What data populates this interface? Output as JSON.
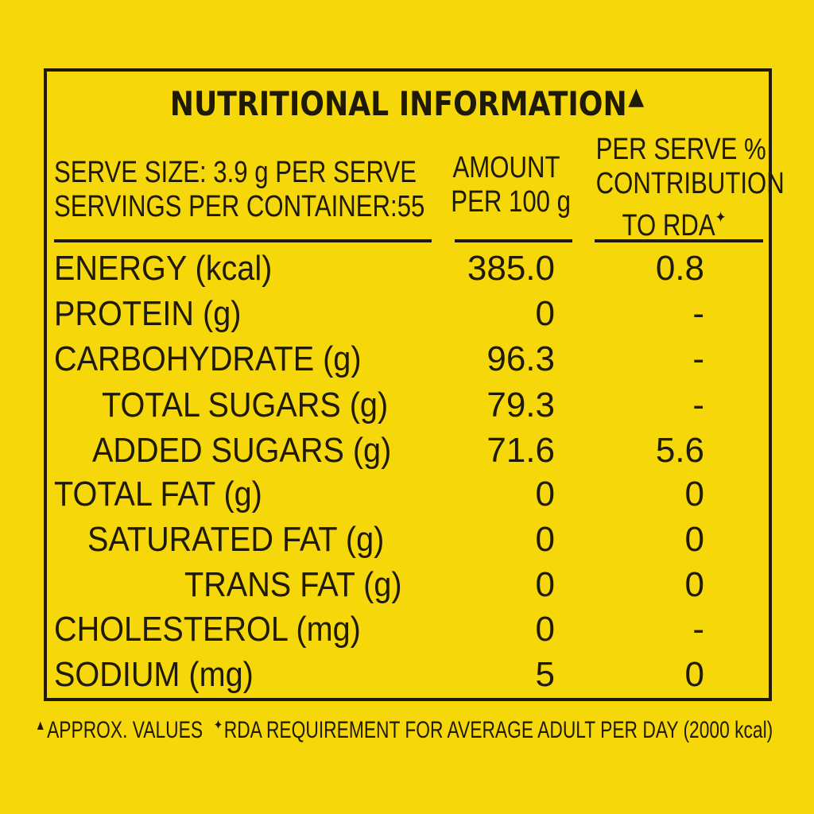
{
  "title": "NUTRITIONAL INFORMATION",
  "approx_mark": "▲",
  "rda_mark": "✦",
  "header": {
    "serve_size": "SERVE SIZE: 3.9 g PER SERVE",
    "servings": "SERVINGS PER CONTAINER:55",
    "amount_line1": "AMOUNT",
    "amount_line2": "PER 100 g",
    "rda_line1": "PER SERVE %",
    "rda_line2": "CONTRIBUTION",
    "rda_line3": "TO RDA"
  },
  "rows": [
    {
      "name": "ENERGY (kcal)",
      "amount": "385.0",
      "rda": "0.8"
    },
    {
      "name": "PROTEIN (g)",
      "amount": "0",
      "rda": "-"
    },
    {
      "name": "CARBOHYDRATE (g)",
      "amount": "96.3",
      "rda": "-"
    },
    {
      "name": "TOTAL SUGARS (g)",
      "amount": "79.3",
      "rda": "-"
    },
    {
      "name": "ADDED SUGARS (g)",
      "amount": "71.6",
      "rda": "5.6"
    },
    {
      "name": "TOTAL FAT (g)",
      "amount": "0",
      "rda": "0"
    },
    {
      "name": "SATURATED FAT (g)",
      "amount": "0",
      "rda": "0"
    },
    {
      "name": "TRANS FAT (g)",
      "amount": "0",
      "rda": "0"
    },
    {
      "name": "CHOLESTEROL (mg)",
      "amount": "0",
      "rda": "-"
    },
    {
      "name": "SODIUM (mg)",
      "amount": "5",
      "rda": "0"
    }
  ],
  "footnote": {
    "approx": "APPROX. VALUES",
    "rda": "RDA REQUIREMENT FOR AVERAGE ADULT PER DAY (2000 kcal)"
  },
  "colors": {
    "background": "#f6d80a",
    "ink": "#1f1a06"
  }
}
